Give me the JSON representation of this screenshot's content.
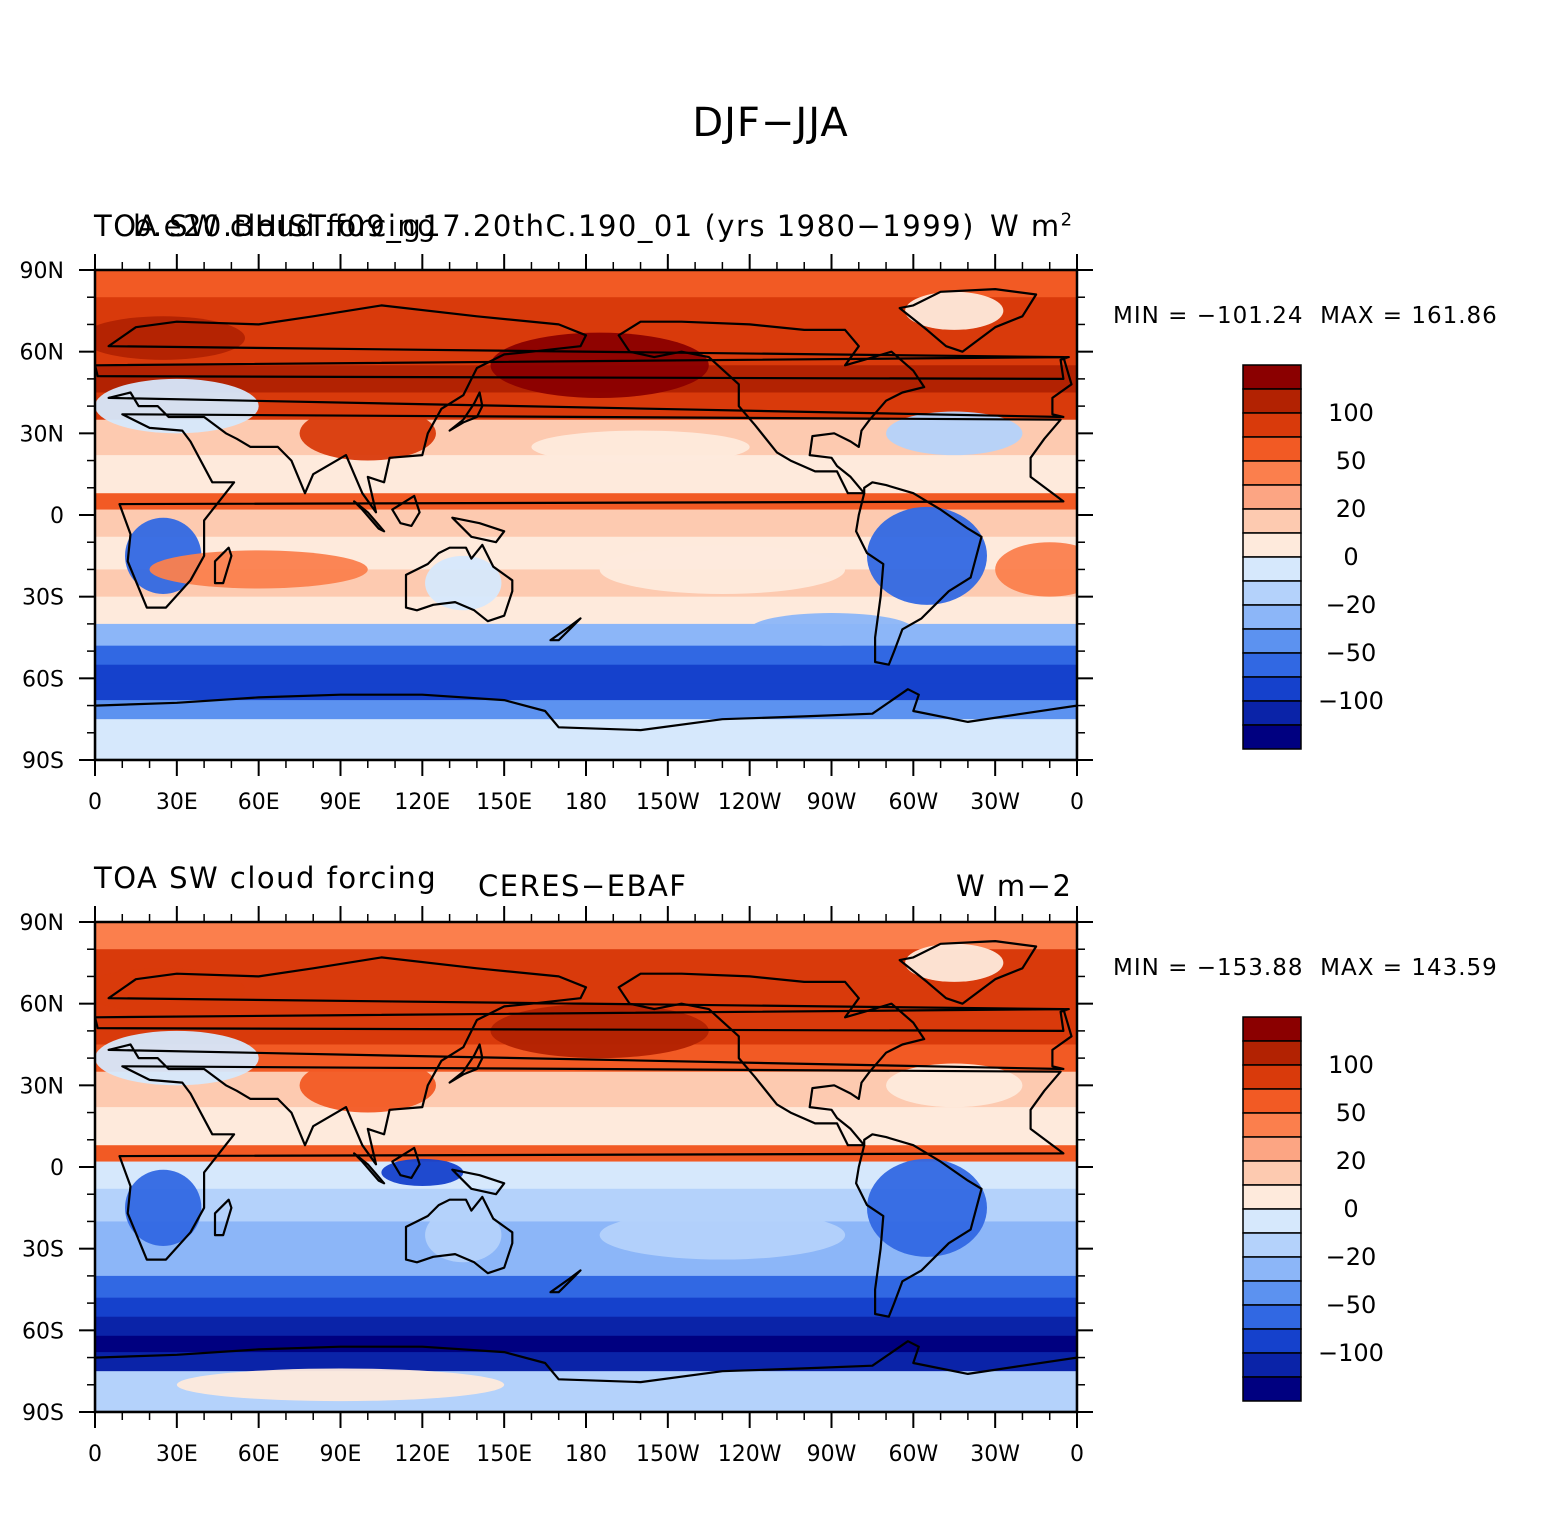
{
  "title": "DJF−JJA",
  "map_data": {
    "type": "contour-map",
    "projection": "cylindrical-equidistant",
    "lon_range": [
      0,
      360
    ],
    "lat_range": [
      -90,
      90
    ],
    "x_tick_labels": [
      "0",
      "30E",
      "60E",
      "90E",
      "120E",
      "150E",
      "180",
      "150W",
      "120W",
      "90W",
      "60W",
      "30W",
      "0"
    ],
    "y_tick_labels": [
      "90N",
      "60N",
      "30N",
      "0",
      "30S",
      "60S",
      "90S"
    ],
    "colorbar": {
      "labels": [
        "100",
        "50",
        "20",
        "0",
        "−20",
        "−50",
        "−100"
      ],
      "colors": [
        "#8b0000",
        "#b22202",
        "#d93a0b",
        "#f25a24",
        "#fb7f4d",
        "#fca583",
        "#fdcab0",
        "#feeadc",
        "#d6e8fc",
        "#b4d2fb",
        "#8cb6f8",
        "#5c92f0",
        "#3168e3",
        "#1541cc",
        "#0a23a8",
        "#000080"
      ]
    }
  },
  "panels": [
    {
      "left_title": "TOA SW cloud forcing",
      "center_title": "b.e20.BHIST.f09_g17.20thC.190_01 (yrs 1980−1999)",
      "units_base": "W m",
      "units_sup": "2",
      "units_text": "",
      "min_label": "MIN = −101.24",
      "max_label": "MAX = 161.86"
    },
    {
      "left_title": "TOA SW cloud forcing",
      "center_title": "CERES−EBAF",
      "units_base": "",
      "units_sup": "",
      "units_text": "W m−2",
      "min_label": "MIN = −153.88",
      "max_label": "MAX = 143.59"
    }
  ]
}
